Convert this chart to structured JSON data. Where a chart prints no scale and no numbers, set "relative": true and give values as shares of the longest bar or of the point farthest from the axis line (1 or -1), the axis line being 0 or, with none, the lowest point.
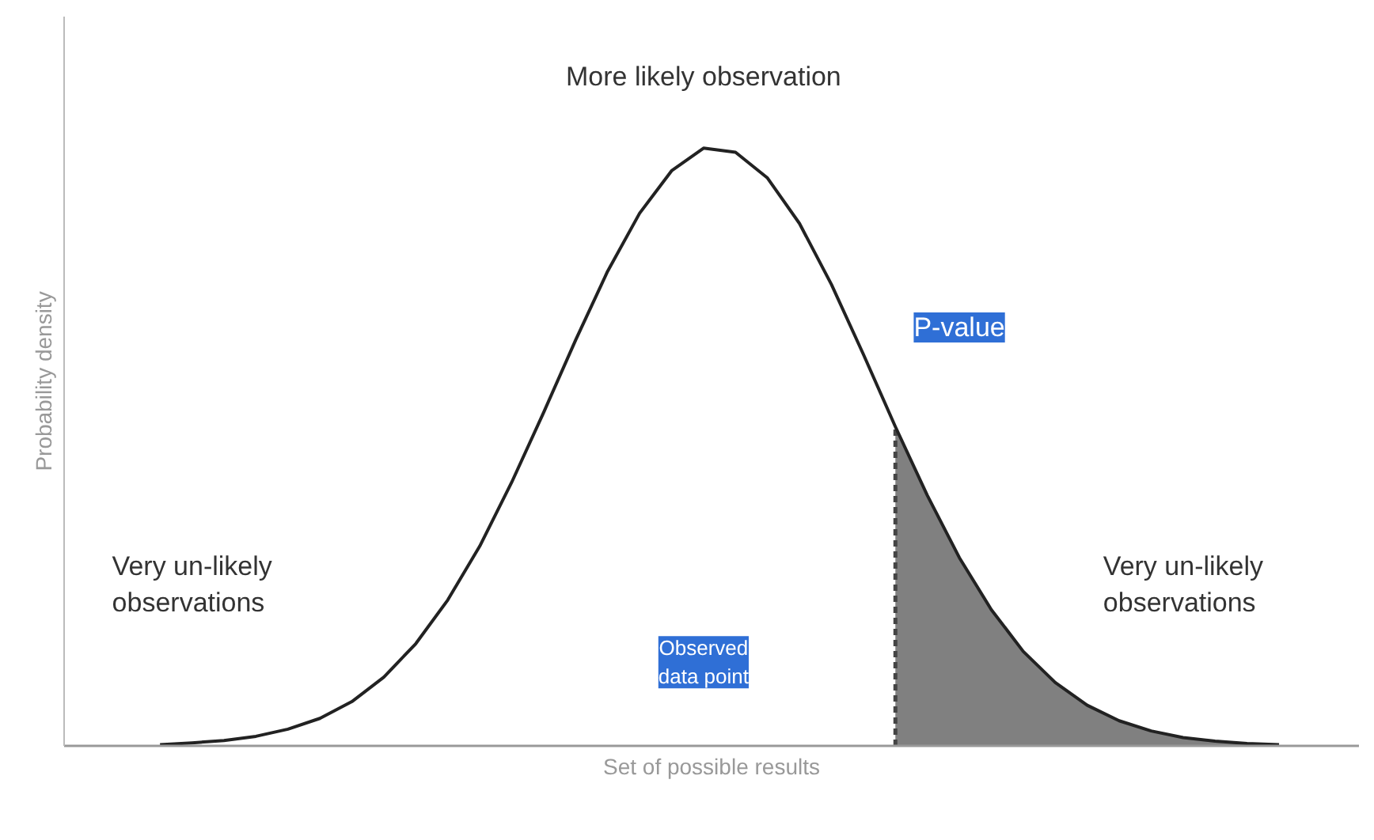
{
  "chart_data": {
    "type": "line",
    "relative": true,
    "xlabel": "Set of possible results",
    "ylabel": "Probability density",
    "categories": [
      null,
      null,
      null,
      null,
      null,
      null,
      null,
      null,
      null,
      null,
      null,
      null,
      null,
      null,
      null,
      null,
      null,
      null,
      null,
      null,
      null,
      null,
      null,
      null,
      null,
      null,
      null,
      null,
      null,
      null,
      null,
      null,
      null,
      null,
      null,
      null
    ],
    "series": [
      {
        "color": "#222222",
        "values": [
          0.002,
          0.005,
          0.009,
          0.016,
          0.028,
          0.046,
          0.074,
          0.115,
          0.171,
          0.244,
          0.334,
          0.441,
          0.558,
          0.679,
          0.794,
          0.891,
          0.962,
          1,
          0.993,
          0.95,
          0.874,
          0.772,
          0.655,
          0.534,
          0.419,
          0.315,
          0.228,
          0.158,
          0.106,
          0.068,
          0.042,
          0.025,
          0.014,
          0.008,
          0.004,
          0.002
        ]
      },
      {
        "type": "area",
        "color": "#808080",
        "values": [
          null,
          null,
          null,
          null,
          null,
          null,
          null,
          null,
          null,
          null,
          null,
          null,
          null,
          null,
          null,
          null,
          null,
          null,
          null,
          null,
          null,
          null,
          null,
          0.534,
          0.419,
          0.315,
          0.228,
          0.158,
          0.106,
          0.068,
          0.042,
          0.025,
          0.014,
          0.008,
          0.004,
          0.002
        ]
      }
    ],
    "annotations": [
      "More likely observation",
      "Very un-likely\nobservations",
      "Very un-likely\nobservations",
      "P-value",
      "Observed\ndata point"
    ]
  }
}
